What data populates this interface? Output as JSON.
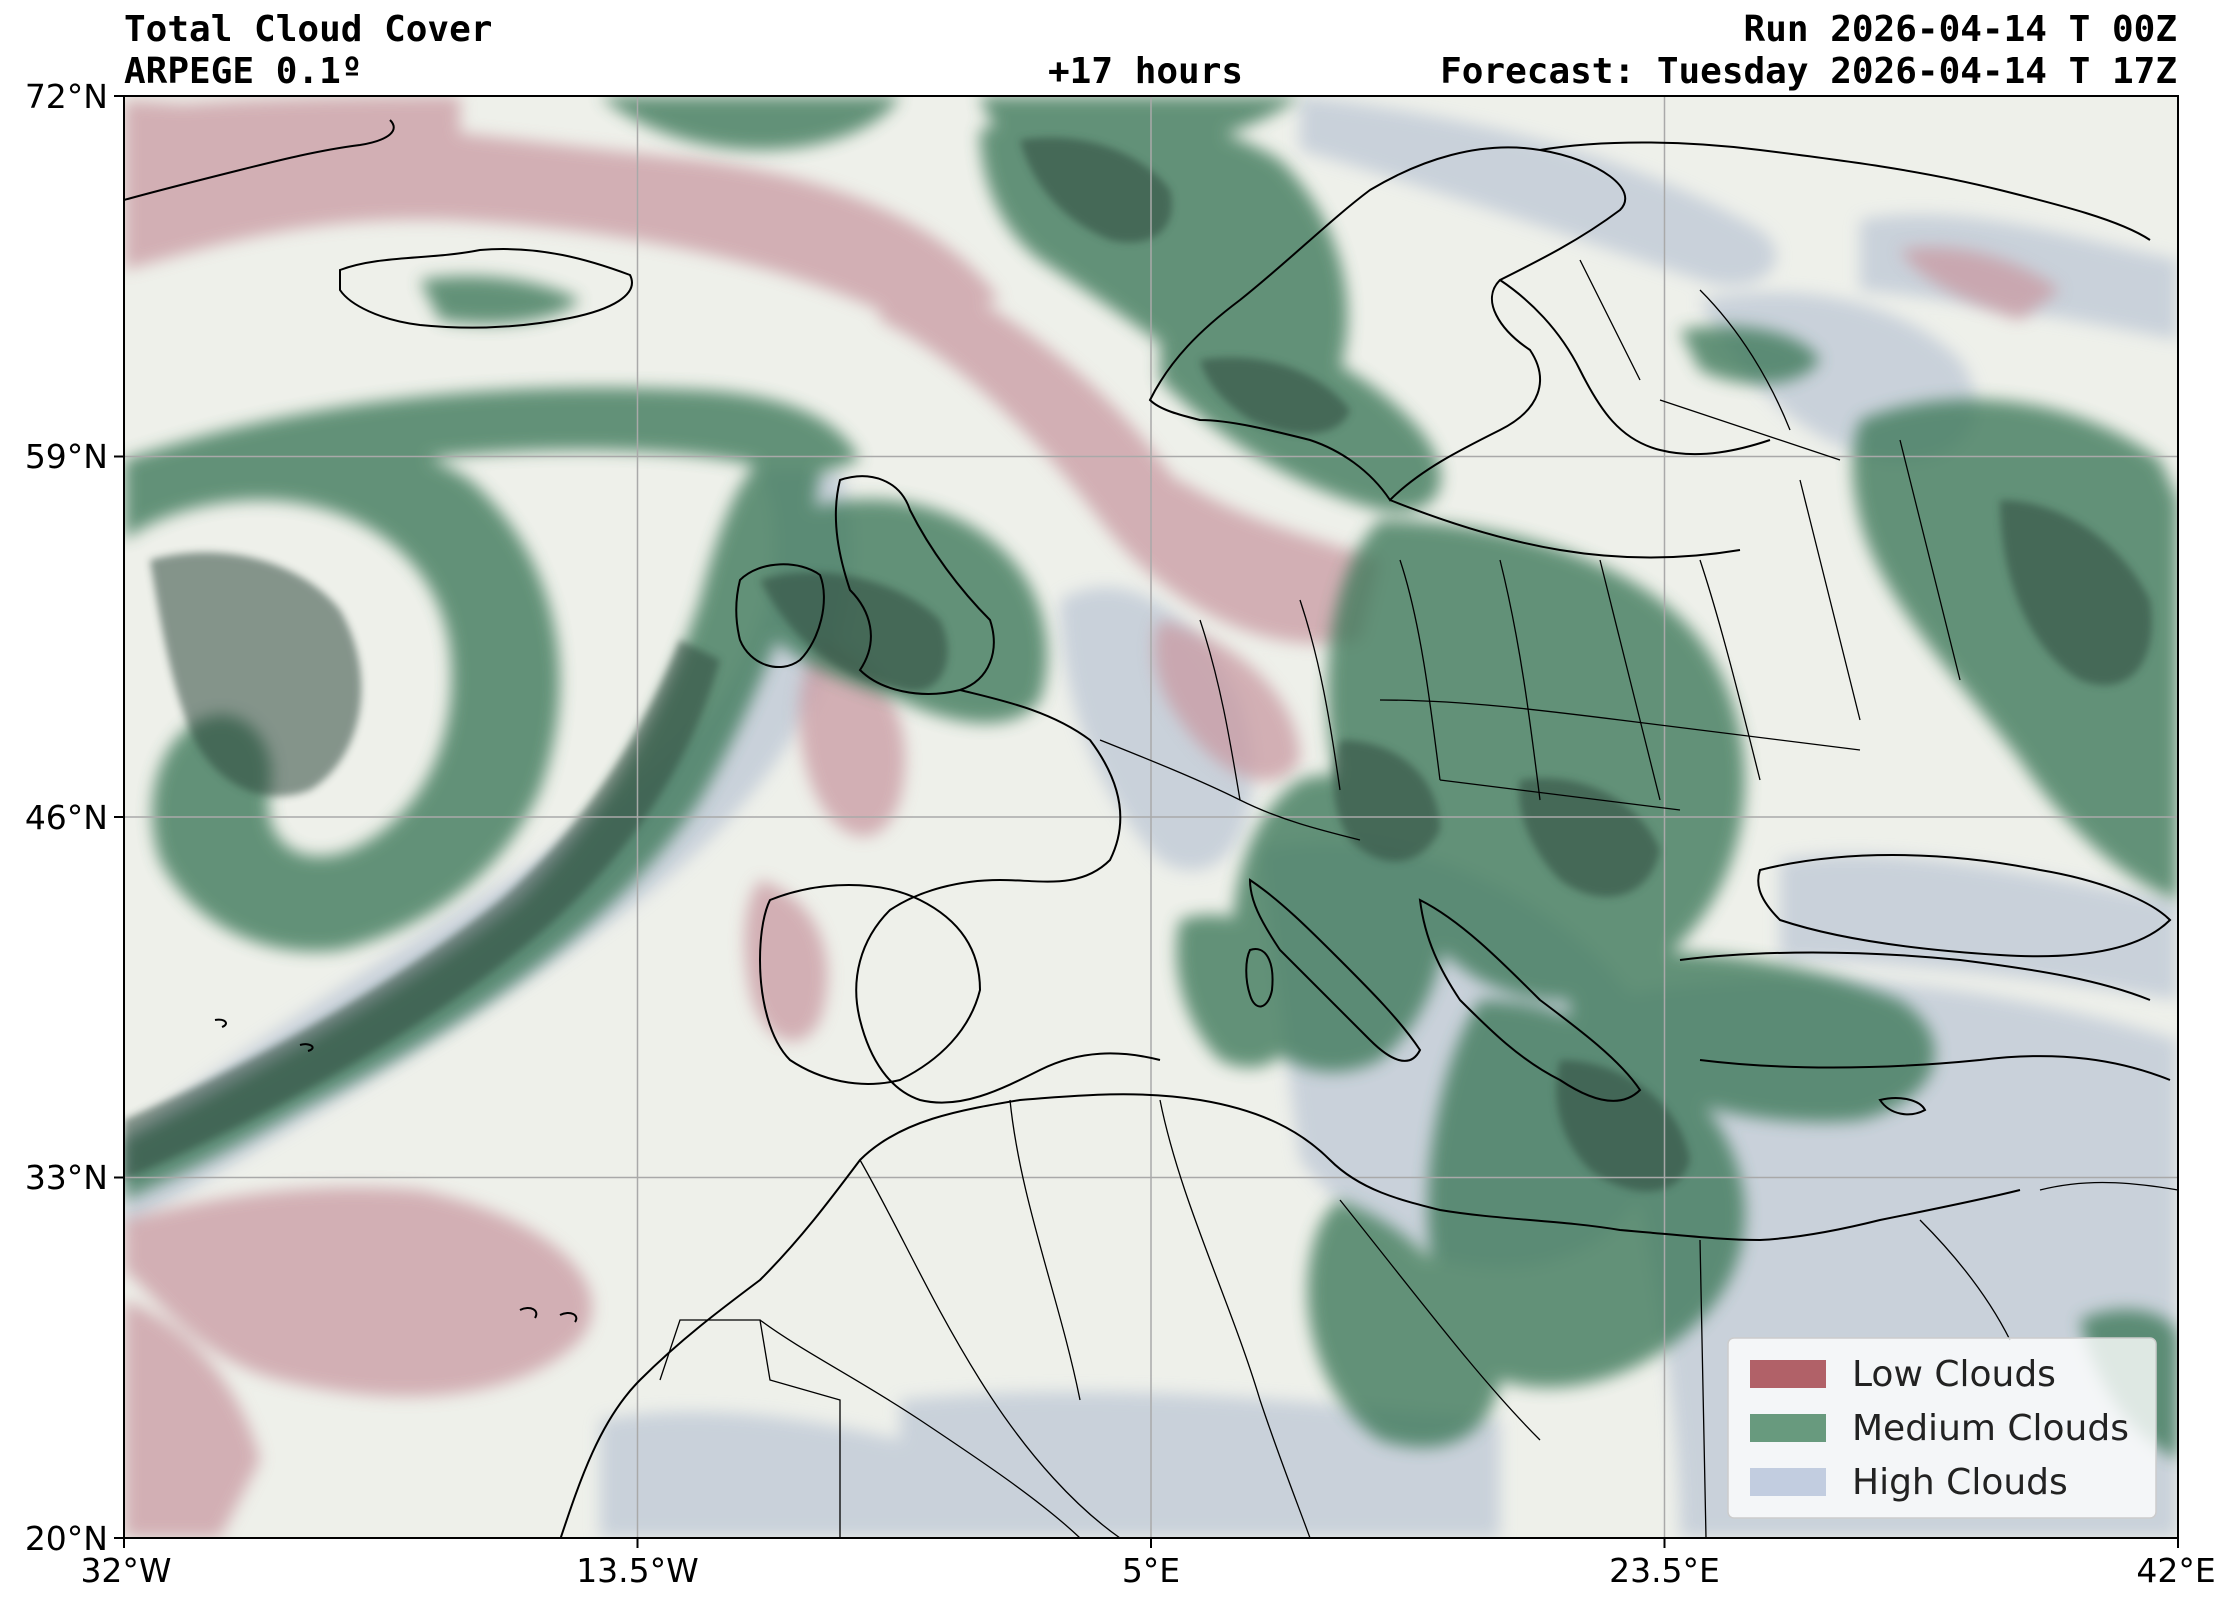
{
  "header": {
    "title": "Total Cloud Cover",
    "model": "ARPEGE 0.1º",
    "run": "Run 2026-04-14 T 00Z",
    "lead_time": "+17 hours",
    "forecast": "Forecast: Tuesday 2026-04-14 T 17Z"
  },
  "axes": {
    "lat_labels": [
      "72°N",
      "59°N",
      "46°N",
      "33°N",
      "20°N"
    ],
    "lon_labels": [
      "32°W",
      "13.5°W",
      "5°E",
      "23.5°E",
      "42°E"
    ]
  },
  "legend": {
    "items": [
      {
        "label": "Low Clouds",
        "color": "#a4474f"
      },
      {
        "label": "Medium Clouds",
        "color": "#4f8a68"
      },
      {
        "label": "High Clouds",
        "color": "#b9c6dc"
      }
    ]
  },
  "colors": {
    "background": "#eef0ea",
    "low_cloud": "#c99aa2",
    "medium_cloud": "#3f7a5c",
    "dark_cloud": "#2f4a3c",
    "high_cloud": "#c3ccd8"
  }
}
